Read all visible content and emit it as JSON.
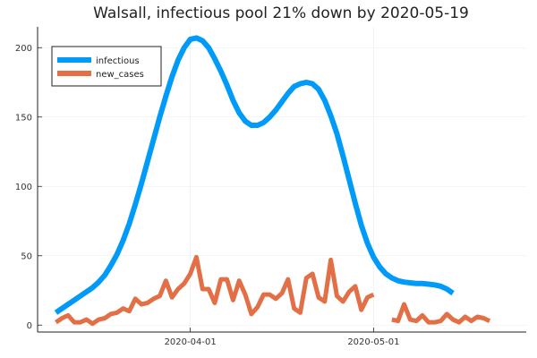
{
  "chart_data": {
    "type": "line",
    "title": "Walsall, infectious pool 21% down by 2020-05-19",
    "xlabel": "",
    "ylabel": "",
    "x_start": "2020-03-10",
    "xlim": [
      "2020-03-07",
      "2020-05-26"
    ],
    "ylim": [
      -5,
      215
    ],
    "yticks": [
      0,
      50,
      100,
      150,
      200
    ],
    "xticks": [
      "2020-04-01",
      "2020-05-01"
    ],
    "grid": true,
    "legend_position": "top-left",
    "series": [
      {
        "name": "infectious",
        "color": "#009af9",
        "values": [
          9,
          12,
          15,
          18,
          21,
          24,
          27,
          31,
          36,
          43,
          51,
          61,
          73,
          87,
          102,
          118,
          134,
          150,
          165,
          179,
          191,
          200,
          206,
          207,
          205,
          200,
          192,
          183,
          173,
          162,
          153,
          147,
          144,
          144,
          146,
          150,
          155,
          161,
          167,
          172,
          174,
          175,
          174,
          170,
          162,
          151,
          138,
          122,
          105,
          88,
          72,
          59,
          49,
          42,
          37,
          34,
          32,
          31,
          30.5,
          30,
          30,
          29.5,
          29,
          28,
          26,
          23
        ]
      },
      {
        "name": "new_cases",
        "color": "#e26f46",
        "values": [
          2,
          5,
          7,
          2,
          2,
          4,
          1,
          4,
          5,
          8,
          9,
          12,
          10,
          19,
          15,
          16,
          19,
          21,
          32,
          20,
          26,
          30,
          37,
          49,
          26,
          26,
          16,
          33,
          33,
          18,
          32,
          22,
          8,
          13,
          22,
          22,
          19,
          23,
          33,
          12,
          9,
          34,
          37,
          20,
          17,
          47,
          21,
          17,
          24,
          28,
          11,
          20,
          22,
          null,
          null,
          4,
          3,
          15,
          4,
          3,
          7,
          2,
          2,
          3,
          8,
          4,
          2,
          6,
          3,
          6,
          5,
          3
        ]
      }
    ]
  }
}
